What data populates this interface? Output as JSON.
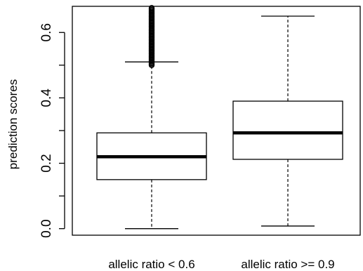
{
  "chart_data": {
    "type": "boxplot",
    "title": "",
    "xlabel": "",
    "ylabel": "prediction scores",
    "ylim": [
      -0.02,
      0.68
    ],
    "yticks": [
      0.0,
      0.2,
      0.4,
      0.6
    ],
    "ytick_labels": [
      "0.0",
      "0.2",
      "0.4",
      "0.6"
    ],
    "categories": [
      "allelic ratio < 0.6",
      "allelic ratio >= 0.9"
    ],
    "boxes": [
      {
        "label": "allelic ratio < 0.6",
        "whisker_low": 0.0,
        "q1": 0.15,
        "median": 0.22,
        "q3": 0.293,
        "whisker_high": 0.51,
        "outliers_range": [
          0.5,
          0.675
        ]
      },
      {
        "label": "allelic ratio >= 0.9",
        "whisker_low": 0.008,
        "q1": 0.212,
        "median": 0.293,
        "q3": 0.39,
        "whisker_high": 0.65,
        "outliers_range": null
      }
    ],
    "colors": {
      "box_stroke": "#000000",
      "median": "#000000",
      "outlier": "#000000"
    },
    "grid": false
  }
}
